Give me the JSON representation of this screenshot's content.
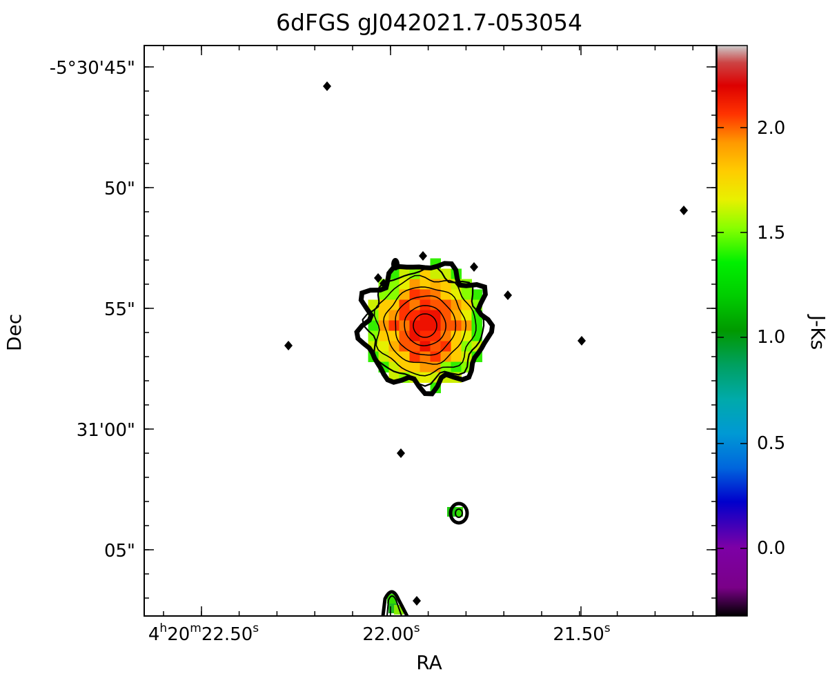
{
  "chart_data": {
    "type": "heatmap",
    "title": "6dFGS gJ042021.7-053054",
    "xlabel": "RA",
    "ylabel": "Dec",
    "x_ticks": [
      {
        "h": "4",
        "m": "20",
        "s": "22.50",
        "s_sup": "s"
      },
      {
        "s": "22.00",
        "s_sup": "s"
      },
      {
        "s": "21.50",
        "s_sup": "s"
      }
    ],
    "y_ticks": [
      "-5°30'45\"",
      "50\"",
      "55\"",
      "31'00\"",
      "05\""
    ],
    "colorbar": {
      "label": "J-Ks",
      "ticks": [
        "2.0",
        "1.5",
        "1.0",
        "0.5",
        "0.0"
      ],
      "range": [
        -0.35,
        2.4
      ],
      "colormap": "nipy_spectral"
    },
    "sources": [
      {
        "name": "central-galaxy",
        "ra_s": 21.87,
        "dec_arcsec": 55.6,
        "peak_jks": 2.1
      },
      {
        "name": "compact-south",
        "ra_s": 21.79,
        "dec_arcsec": 63.5,
        "peak_jks": 1.1
      },
      {
        "name": "edge-south",
        "ra_s": 21.98,
        "dec_arcsec": 67.0,
        "peak_jks": 1.2
      }
    ],
    "grid": false
  }
}
